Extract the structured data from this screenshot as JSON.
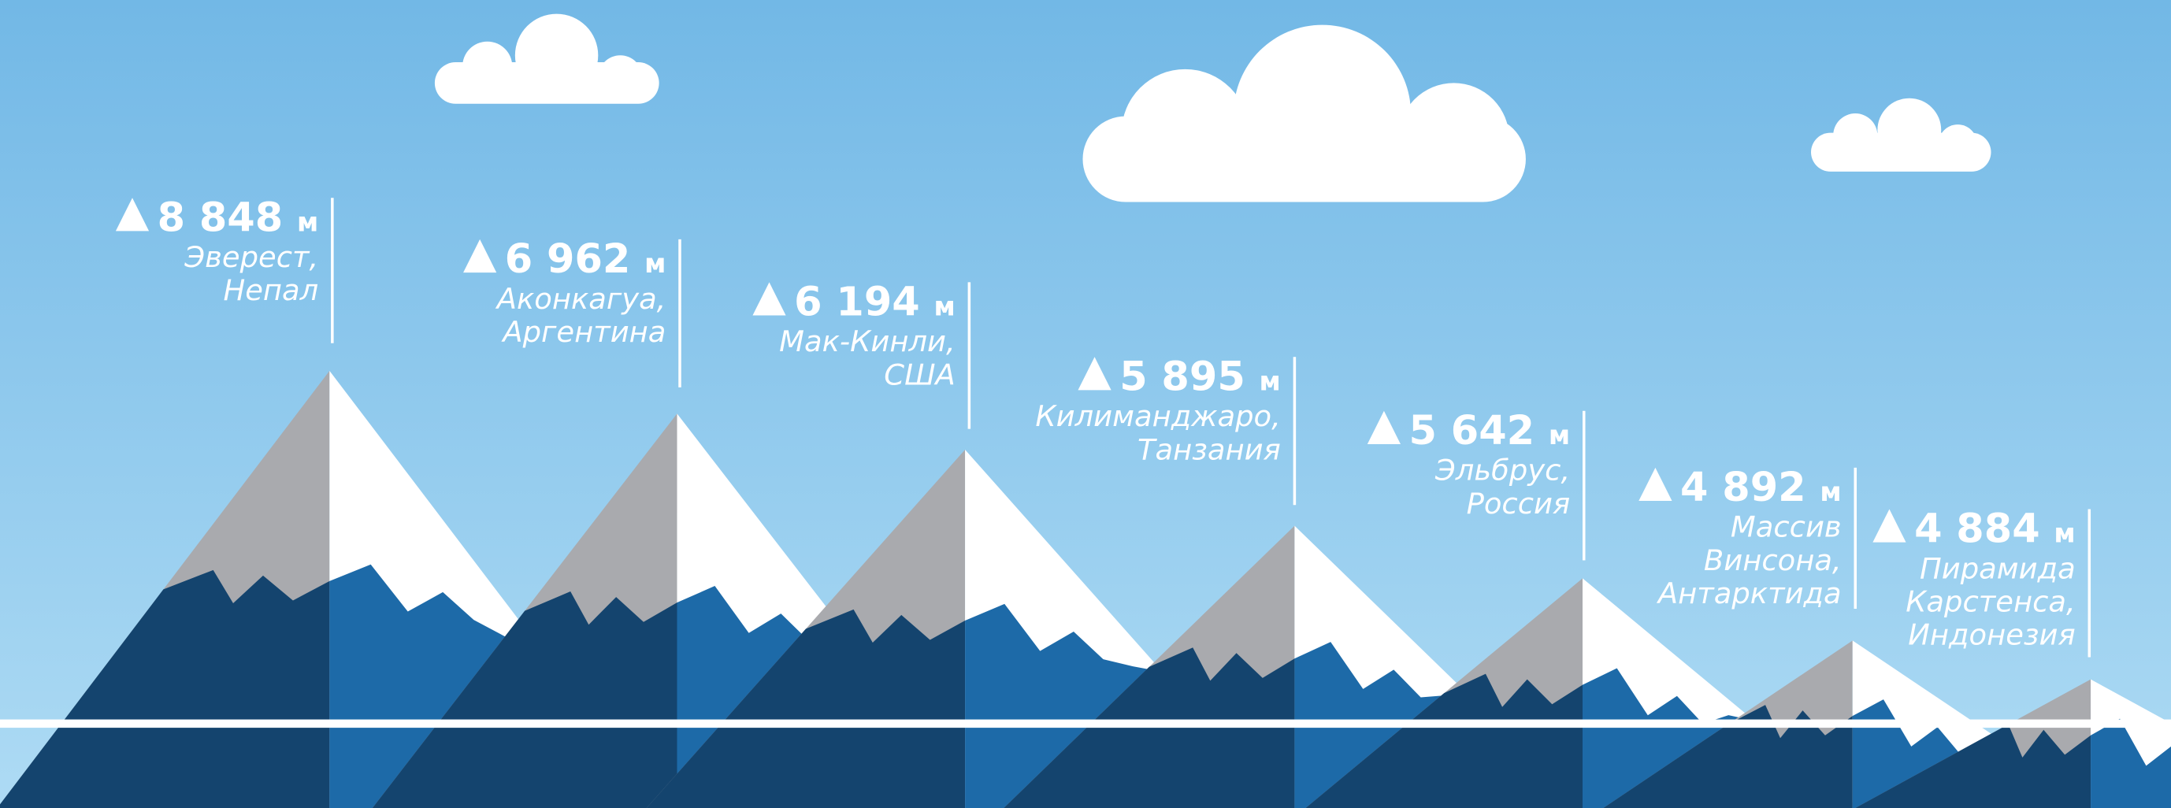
{
  "peaks": [
    {
      "height": "8 848",
      "unit": "м",
      "name": [
        "Эверест,",
        "Непал"
      ]
    },
    {
      "height": "6 962",
      "unit": "м",
      "name": [
        "Аконкагуа,",
        "Аргентина"
      ]
    },
    {
      "height": "6 194",
      "unit": "м",
      "name": [
        "Мак-Кинли,",
        "США"
      ]
    },
    {
      "height": "5 895",
      "unit": "м",
      "name": [
        "Килиманджаро,",
        "Танзания"
      ]
    },
    {
      "height": "5 642",
      "unit": "м",
      "name": [
        "Эльбрус,",
        "Россия"
      ]
    },
    {
      "height": "4 892",
      "unit": "м",
      "name": [
        "Массив",
        "Винсона,",
        "Антарктида"
      ]
    },
    {
      "height": "4 884",
      "unit": "м",
      "name": [
        "Пирамида",
        "Карстенса,",
        "Индонезия"
      ]
    }
  ]
}
